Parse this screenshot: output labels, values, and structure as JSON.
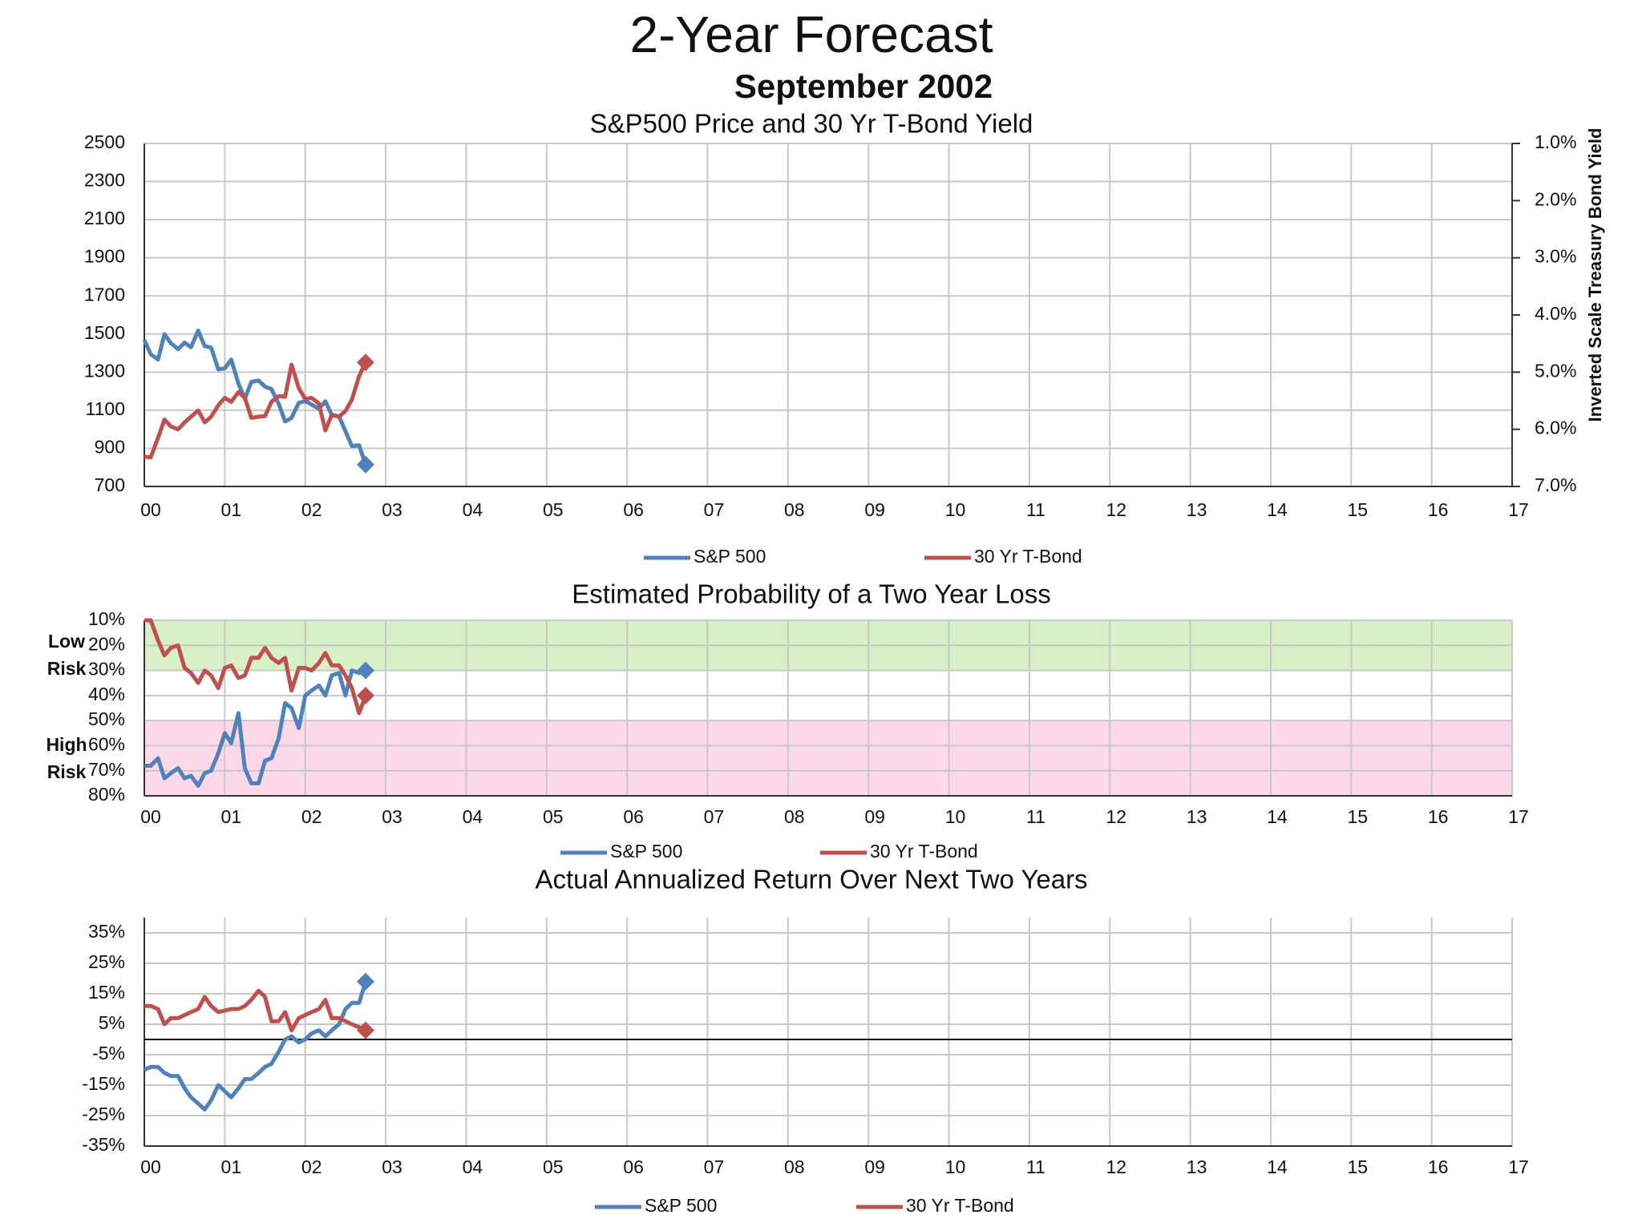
{
  "title": "2-Year Forecast",
  "subtitle": "September 2002",
  "chart_data": [
    {
      "type": "line",
      "title": "S&P500 Price and 30 Yr T-Bond Yield",
      "y2_label": "Inverted Scale Treasury Bond Yield",
      "x": [
        0,
        0.08,
        0.17,
        0.25,
        0.33,
        0.42,
        0.5,
        0.58,
        0.67,
        0.75,
        0.83,
        0.92,
        1,
        1.08,
        1.17,
        1.25,
        1.33,
        1.42,
        1.5,
        1.58,
        1.67,
        1.75,
        1.83,
        1.92,
        2,
        2.08,
        2.17,
        2.25,
        2.33,
        2.42,
        2.5,
        2.58,
        2.67,
        2.75
      ],
      "xlim": [
        0,
        17
      ],
      "xticks": [
        {
          "value": 0,
          "label": "00"
        },
        {
          "value": 1,
          "label": "01"
        },
        {
          "value": 2,
          "label": "02"
        },
        {
          "value": 3,
          "label": "03"
        },
        {
          "value": 4,
          "label": "04"
        },
        {
          "value": 5,
          "label": "05"
        },
        {
          "value": 6,
          "label": "06"
        },
        {
          "value": 7,
          "label": "07"
        },
        {
          "value": 8,
          "label": "08"
        },
        {
          "value": 9,
          "label": "09"
        },
        10,
        11,
        12,
        13,
        14,
        15,
        16,
        17
      ],
      "ylim": [
        700,
        2500
      ],
      "yticks": [
        700,
        900,
        1100,
        1300,
        1500,
        1700,
        1900,
        2100,
        2300,
        2500
      ],
      "y2lim": [
        1,
        7
      ],
      "y2_inverted": true,
      "y2ticks": [
        {
          "value": 1,
          "label": "1.0%"
        },
        {
          "value": 2,
          "label": "2.0%"
        },
        {
          "value": 3,
          "label": "3.0%"
        },
        {
          "value": 4,
          "label": "4.0%"
        },
        {
          "value": 5,
          "label": "5.0%"
        },
        {
          "value": 6,
          "label": "6.0%"
        },
        {
          "value": 7,
          "label": "7.0%"
        }
      ],
      "grid": true,
      "end_marker": true,
      "legend": "bottom",
      "series": [
        {
          "name": "S&P 500",
          "color": "#4f81bd",
          "values": [
            1469,
            1394,
            1366,
            1499,
            1452,
            1421,
            1455,
            1431,
            1518,
            1437,
            1429,
            1315,
            1320,
            1366,
            1240,
            1160,
            1249,
            1256,
            1224,
            1211,
            1134,
            1041,
            1060,
            1139,
            1148,
            1130,
            1107,
            1147,
            1076,
            1067,
            990,
            912,
            916,
            815
          ]
        },
        {
          "name": "30 Yr T-Bond",
          "color": "#c0504d",
          "axis": "y2",
          "values": [
            6.48,
            6.49,
            6.15,
            5.83,
            5.95,
            6.0,
            5.88,
            5.78,
            5.67,
            5.88,
            5.78,
            5.58,
            5.45,
            5.52,
            5.35,
            5.45,
            5.8,
            5.78,
            5.77,
            5.52,
            5.42,
            5.43,
            4.87,
            5.28,
            5.47,
            5.45,
            5.55,
            6.02,
            5.75,
            5.78,
            5.68,
            5.48,
            5.07,
            4.83
          ]
        }
      ]
    },
    {
      "type": "line",
      "title": "Estimated Probability of a Two Year Loss",
      "x": [
        0,
        0.08,
        0.17,
        0.25,
        0.33,
        0.42,
        0.5,
        0.58,
        0.67,
        0.75,
        0.83,
        0.92,
        1,
        1.08,
        1.17,
        1.25,
        1.33,
        1.42,
        1.5,
        1.58,
        1.67,
        1.75,
        1.83,
        1.92,
        2,
        2.08,
        2.17,
        2.25,
        2.33,
        2.42,
        2.5,
        2.58,
        2.67,
        2.75
      ],
      "xlim": [
        0,
        17
      ],
      "xticks": [
        {
          "value": 0,
          "label": "00"
        },
        {
          "value": 1,
          "label": "01"
        },
        {
          "value": 2,
          "label": "02"
        },
        {
          "value": 3,
          "label": "03"
        },
        {
          "value": 4,
          "label": "04"
        },
        {
          "value": 5,
          "label": "05"
        },
        {
          "value": 6,
          "label": "06"
        },
        {
          "value": 7,
          "label": "07"
        },
        {
          "value": 8,
          "label": "08"
        },
        {
          "value": 9,
          "label": "09"
        },
        10,
        11,
        12,
        13,
        14,
        15,
        16,
        17
      ],
      "ylim": [
        10,
        80
      ],
      "y_inverted": true,
      "yticks": [
        {
          "value": 10,
          "label": "10%"
        },
        {
          "value": 20,
          "label": "20%"
        },
        {
          "value": 30,
          "label": "30%"
        },
        {
          "value": 40,
          "label": "40%"
        },
        {
          "value": 50,
          "label": "50%"
        },
        {
          "value": 60,
          "label": "60%"
        },
        {
          "value": 70,
          "label": "70%"
        },
        {
          "value": 80,
          "label": "80%"
        }
      ],
      "bands": [
        {
          "from": 10,
          "to": 30,
          "label": "Low Risk",
          "color": "#d8f0c8"
        },
        {
          "from": 50,
          "to": 80,
          "label": "High Risk",
          "color": "#fcd8e8"
        }
      ],
      "grid": true,
      "end_marker": true,
      "legend": "bottom",
      "series": [
        {
          "name": "S&P 500",
          "color": "#4f81bd",
          "values": [
            68,
            68,
            65,
            73,
            71,
            69,
            73,
            72,
            76,
            71,
            70,
            63,
            55,
            59,
            47,
            69,
            75,
            75,
            66,
            65,
            57,
            43,
            45,
            53,
            40,
            38,
            36,
            40,
            32,
            31,
            40,
            30,
            31,
            30
          ]
        },
        {
          "name": "30 Yr T-Bond",
          "color": "#c0504d",
          "values": [
            10,
            10,
            18,
            24,
            21,
            20,
            29,
            31,
            35,
            30,
            32,
            37,
            29,
            28,
            33,
            32,
            25,
            25,
            21,
            25,
            27,
            25,
            38,
            29,
            29,
            30,
            27,
            23,
            28,
            28,
            32,
            37,
            47,
            40
          ]
        }
      ]
    },
    {
      "type": "line",
      "title": "Actual Annualized Return Over Next Two Years",
      "x": [
        0,
        0.08,
        0.17,
        0.25,
        0.33,
        0.42,
        0.5,
        0.58,
        0.67,
        0.75,
        0.83,
        0.92,
        1,
        1.08,
        1.17,
        1.25,
        1.33,
        1.42,
        1.5,
        1.58,
        1.67,
        1.75,
        1.83,
        1.92,
        2,
        2.08,
        2.17,
        2.25,
        2.33,
        2.42,
        2.5,
        2.58,
        2.67,
        2.75
      ],
      "xlim": [
        0,
        17
      ],
      "xticks": [
        {
          "value": 0,
          "label": "00"
        },
        {
          "value": 1,
          "label": "01"
        },
        {
          "value": 2,
          "label": "02"
        },
        {
          "value": 3,
          "label": "03"
        },
        {
          "value": 4,
          "label": "04"
        },
        {
          "value": 5,
          "label": "05"
        },
        {
          "value": 6,
          "label": "06"
        },
        {
          "value": 7,
          "label": "07"
        },
        {
          "value": 8,
          "label": "08"
        },
        {
          "value": 9,
          "label": "09"
        },
        10,
        11,
        12,
        13,
        14,
        15,
        16,
        17
      ],
      "ylim": [
        -35,
        40
      ],
      "yticks": [
        {
          "value": -35,
          "label": "-35%"
        },
        {
          "value": -25,
          "label": "-25%"
        },
        {
          "value": -15,
          "label": "-15%"
        },
        {
          "value": -5,
          "label": "-5%"
        },
        {
          "value": 5,
          "label": "5%"
        },
        {
          "value": 15,
          "label": "15%"
        },
        {
          "value": 25,
          "label": "25%"
        },
        {
          "value": 35,
          "label": "35%"
        }
      ],
      "grid": true,
      "zero_line": true,
      "end_marker": true,
      "legend": "bottom",
      "series": [
        {
          "name": "S&P 500",
          "color": "#4f81bd",
          "values": [
            -10,
            -9,
            -9,
            -11,
            -12,
            -12,
            -16,
            -19,
            -21,
            -23,
            -20,
            -15,
            -17,
            -19,
            -16,
            -13,
            -13,
            -11,
            -9,
            -8,
            -4,
            0,
            1,
            -1,
            0,
            2,
            3,
            1,
            3,
            5,
            10,
            12,
            12,
            19
          ]
        },
        {
          "name": "30 Yr T-Bond",
          "color": "#c0504d",
          "values": [
            11,
            11,
            10,
            5,
            7,
            7,
            8,
            9,
            10,
            14,
            11,
            9,
            9.5,
            10,
            10,
            11,
            13,
            16,
            14,
            6,
            6,
            9,
            3,
            7,
            8,
            9,
            10,
            13,
            7,
            7,
            6,
            5,
            4,
            3
          ]
        }
      ]
    }
  ]
}
